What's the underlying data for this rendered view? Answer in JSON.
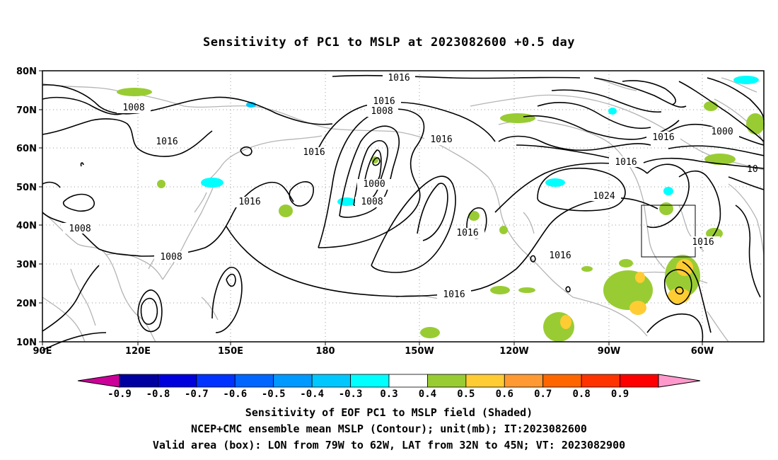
{
  "title": "Sensitivity of PC1 to MSLP at 2023082600 +0.5 day",
  "map": {
    "lat_labels": [
      "80N",
      "70N",
      "60N",
      "50N",
      "40N",
      "30N",
      "20N",
      "10N"
    ],
    "lon_labels": [
      "90E",
      "120E",
      "150E",
      "180",
      "150W",
      "120W",
      "90W",
      "60W"
    ],
    "contour_labels": [
      {
        "text": "1016"
      },
      {
        "text": "1016"
      },
      {
        "text": "1008"
      },
      {
        "text": "1008"
      },
      {
        "text": "1016"
      },
      {
        "text": "1016"
      },
      {
        "text": "1016"
      },
      {
        "text": "1000"
      },
      {
        "text": "1008"
      },
      {
        "text": "1016"
      },
      {
        "text": "1008"
      },
      {
        "text": "1008"
      },
      {
        "text": "1000"
      },
      {
        "text": "1016"
      },
      {
        "text": "1024"
      },
      {
        "text": "1016"
      },
      {
        "text": "1016"
      },
      {
        "text": "1016"
      },
      {
        "text": "1016"
      },
      {
        "text": "10"
      }
    ],
    "box": {
      "lon_min": "79W",
      "lon_max": "62W",
      "lat_min": "32N",
      "lat_max": "45N"
    },
    "colors": {
      "cyan": "#00ffff",
      "light_blue": "#00c8ff",
      "green": "#99cc33",
      "yellow": "#ffcc33",
      "coast": "#b4b4b4",
      "contour": "#000000"
    }
  },
  "colorbar": {
    "labels": [
      "-0.9",
      "-0.8",
      "-0.7",
      "-0.6",
      "-0.5",
      "-0.4",
      "-0.3",
      "0.3",
      "0.4",
      "0.5",
      "0.6",
      "0.7",
      "0.8",
      "0.9"
    ],
    "low_arrow": "#cc0099",
    "high_arrow": "#ff99cc",
    "colors": [
      "#0000a0",
      "#0000dd",
      "#0033ff",
      "#0066ff",
      "#0099ff",
      "#00c8ff",
      "#00ffff",
      "#ffffff",
      "#99cc33",
      "#ffcc33",
      "#ff9933",
      "#ff6600",
      "#ff3300",
      "#ff0000"
    ]
  },
  "captions": {
    "line1": "Sensitivity of EOF PC1 to MSLP field (Shaded)",
    "line2": "NCEP+CMC ensemble mean MSLP (Contour); unit(mb); IT:2023082600",
    "line3": "Valid area (box): LON from 79W to 62W, LAT from 32N to 45N; VT: 2023082900"
  }
}
